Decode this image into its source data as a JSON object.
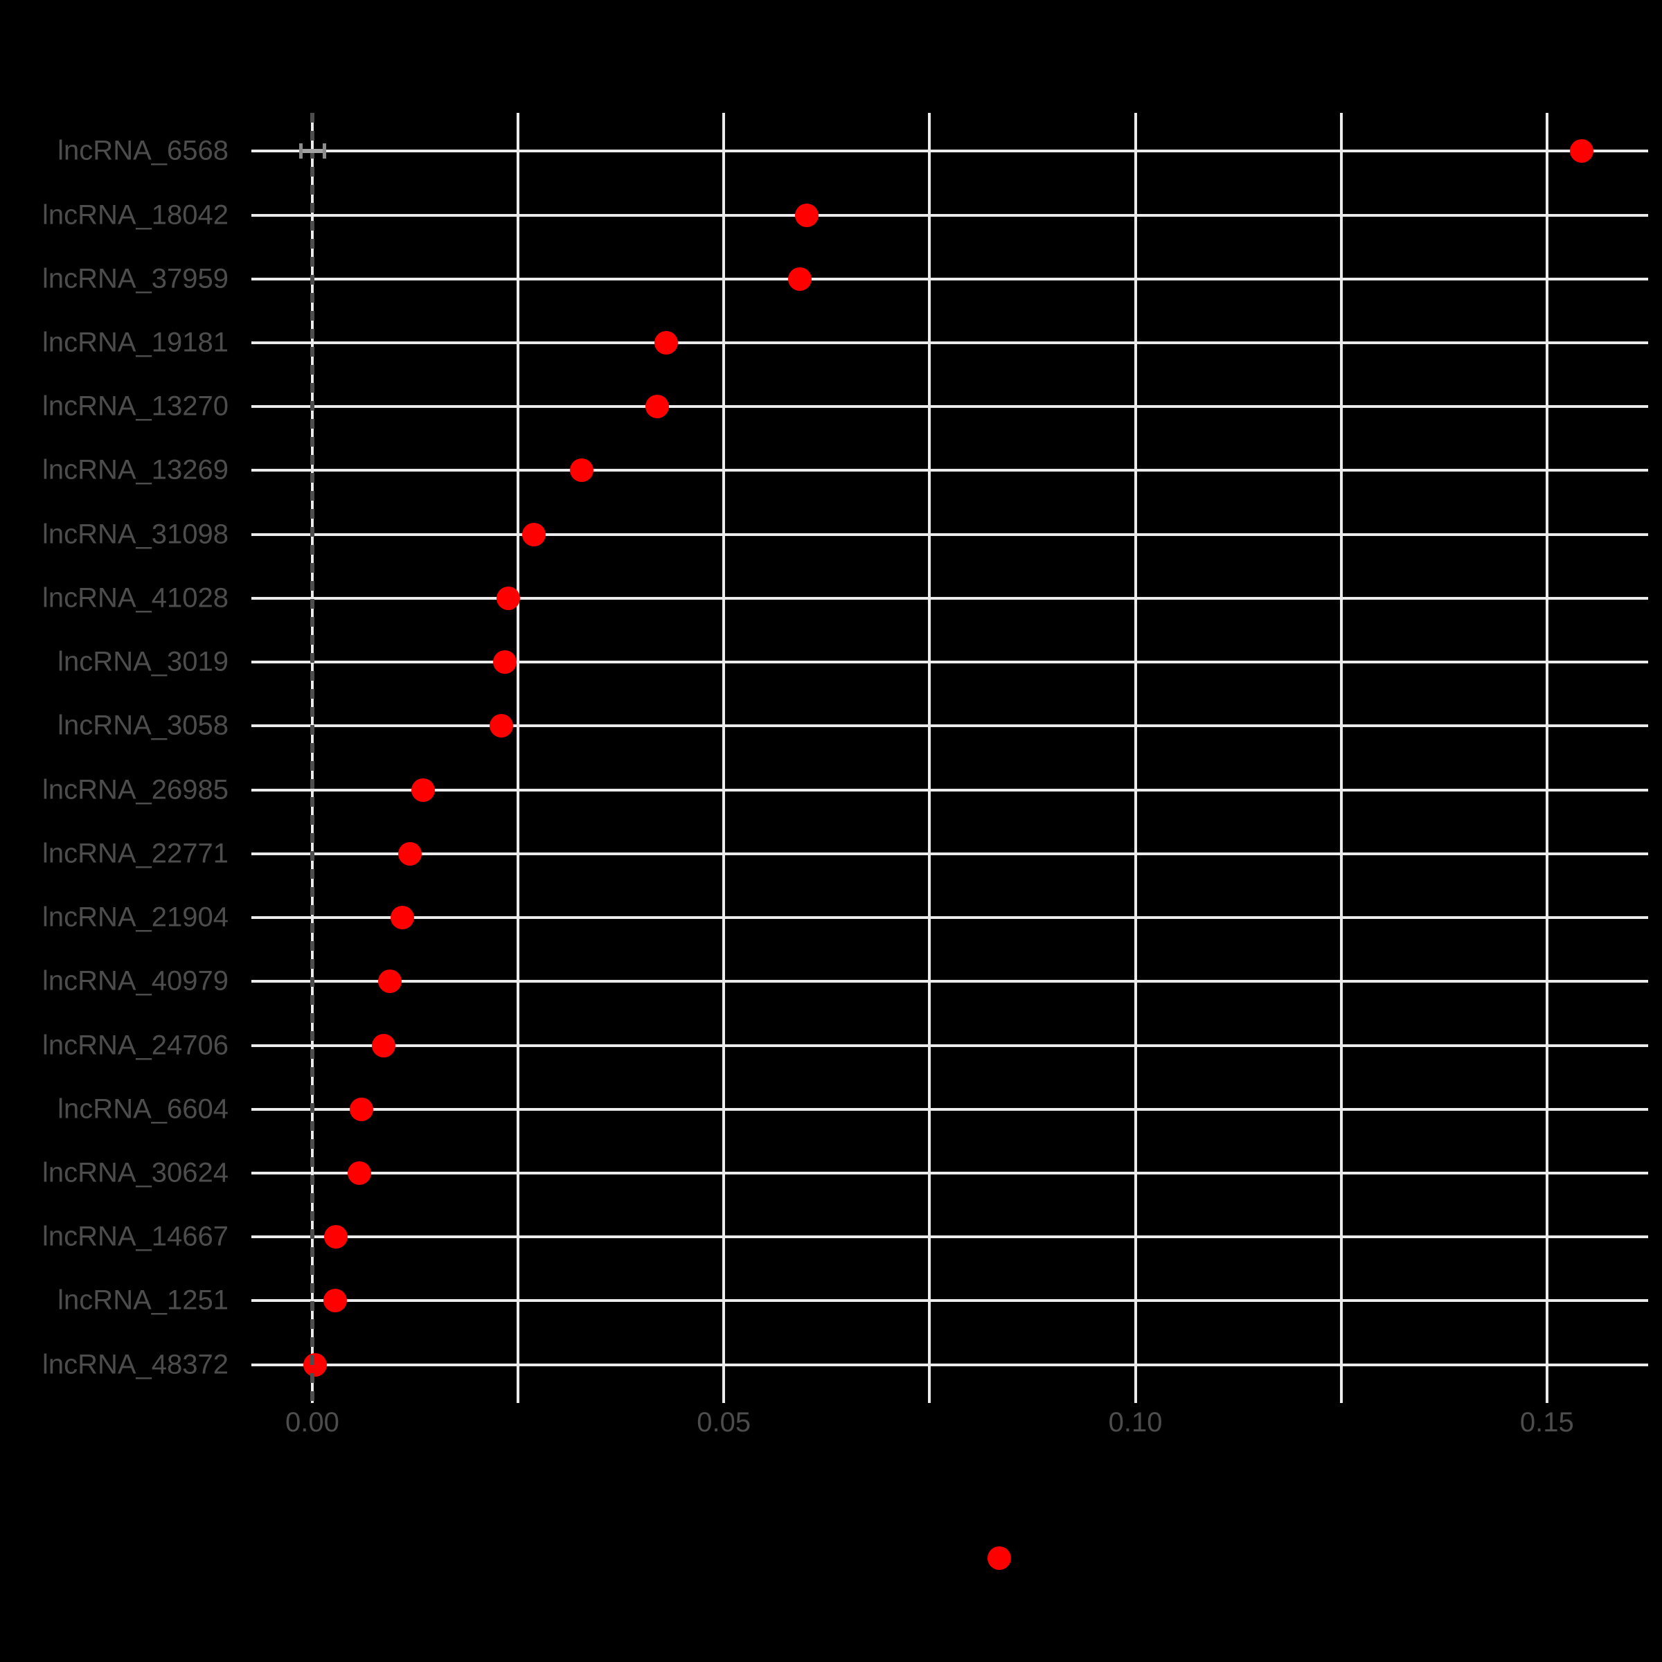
{
  "chart_data": {
    "type": "scatter",
    "subtype": "horizontal-dot-plot",
    "title": "",
    "categories": [
      "lncRNA_6568",
      "lncRNA_18042",
      "lncRNA_37959",
      "lncRNA_19181",
      "lncRNA_13270",
      "lncRNA_13269",
      "lncRNA_31098",
      "lncRNA_41028",
      "lncRNA_3019",
      "lncRNA_3058",
      "lncRNA_26985",
      "lncRNA_22771",
      "lncRNA_21904",
      "lncRNA_40979",
      "lncRNA_24706",
      "lncRNA_6604",
      "lncRNA_30624",
      "lncRNA_14667",
      "lncRNA_1251",
      "lncRNA_48372"
    ],
    "values": [
      0.1542,
      0.0601,
      0.0592,
      0.043,
      0.0419,
      0.0327,
      0.0269,
      0.0238,
      0.0234,
      0.023,
      0.0135,
      0.0119,
      0.0109,
      0.0094,
      0.0087,
      0.006,
      0.0057,
      0.0029,
      0.0028,
      0.0003
    ],
    "xlim": [
      -0.0074,
      0.1623
    ],
    "x_major_ticks": [
      0.0,
      0.05,
      0.1,
      0.15
    ],
    "x_major_tick_labels": [
      "0.00",
      "0.05",
      "0.10",
      "0.15"
    ],
    "x_minor_ticks": [
      0.025,
      0.075,
      0.125
    ],
    "grid": "on",
    "zero_reference_line": {
      "x": 0,
      "style": "dashed"
    },
    "error_bar": {
      "category": "lncRNA_6568",
      "x_min": -0.0014,
      "x_max": 0.0015
    },
    "legend": {
      "position": "bottom",
      "marker": "red-dot"
    },
    "colors": {
      "background": "#000000",
      "grid": "#EBEBEB",
      "point": "#FF0000",
      "text": "#4D4D4D",
      "zero_line": "#4D4D4D",
      "error_bar": "#A3A3A3",
      "error_bar_cap": "#8C8C8C"
    }
  }
}
